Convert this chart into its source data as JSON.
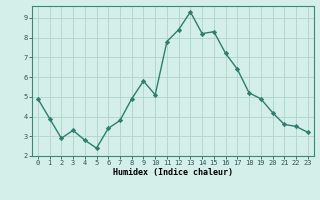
{
  "x": [
    0,
    1,
    2,
    3,
    4,
    5,
    6,
    7,
    8,
    9,
    10,
    11,
    12,
    13,
    14,
    15,
    16,
    17,
    18,
    19,
    20,
    21,
    22,
    23
  ],
  "y": [
    4.9,
    3.9,
    2.9,
    3.3,
    2.8,
    2.4,
    3.4,
    3.8,
    4.9,
    5.8,
    5.1,
    7.8,
    8.4,
    9.3,
    8.2,
    8.3,
    7.2,
    6.4,
    5.2,
    4.9,
    4.2,
    3.6,
    3.5,
    3.2
  ],
  "xlabel": "Humidex (Indice chaleur)",
  "line_color": "#2e7d6e",
  "marker_color": "#2e7d6e",
  "bg_color": "#d4eeea",
  "grid_color": "#aed4cc",
  "xlim_min": -0.5,
  "xlim_max": 23.5,
  "ylim_min": 2.0,
  "ylim_max": 9.6,
  "yticks": [
    2,
    3,
    4,
    5,
    6,
    7,
    8,
    9
  ],
  "xticks": [
    0,
    1,
    2,
    3,
    4,
    5,
    6,
    7,
    8,
    9,
    10,
    11,
    12,
    13,
    14,
    15,
    16,
    17,
    18,
    19,
    20,
    21,
    22,
    23
  ],
  "tick_fontsize": 5,
  "xlabel_fontsize": 6,
  "linewidth": 1.0,
  "markersize": 2.2
}
